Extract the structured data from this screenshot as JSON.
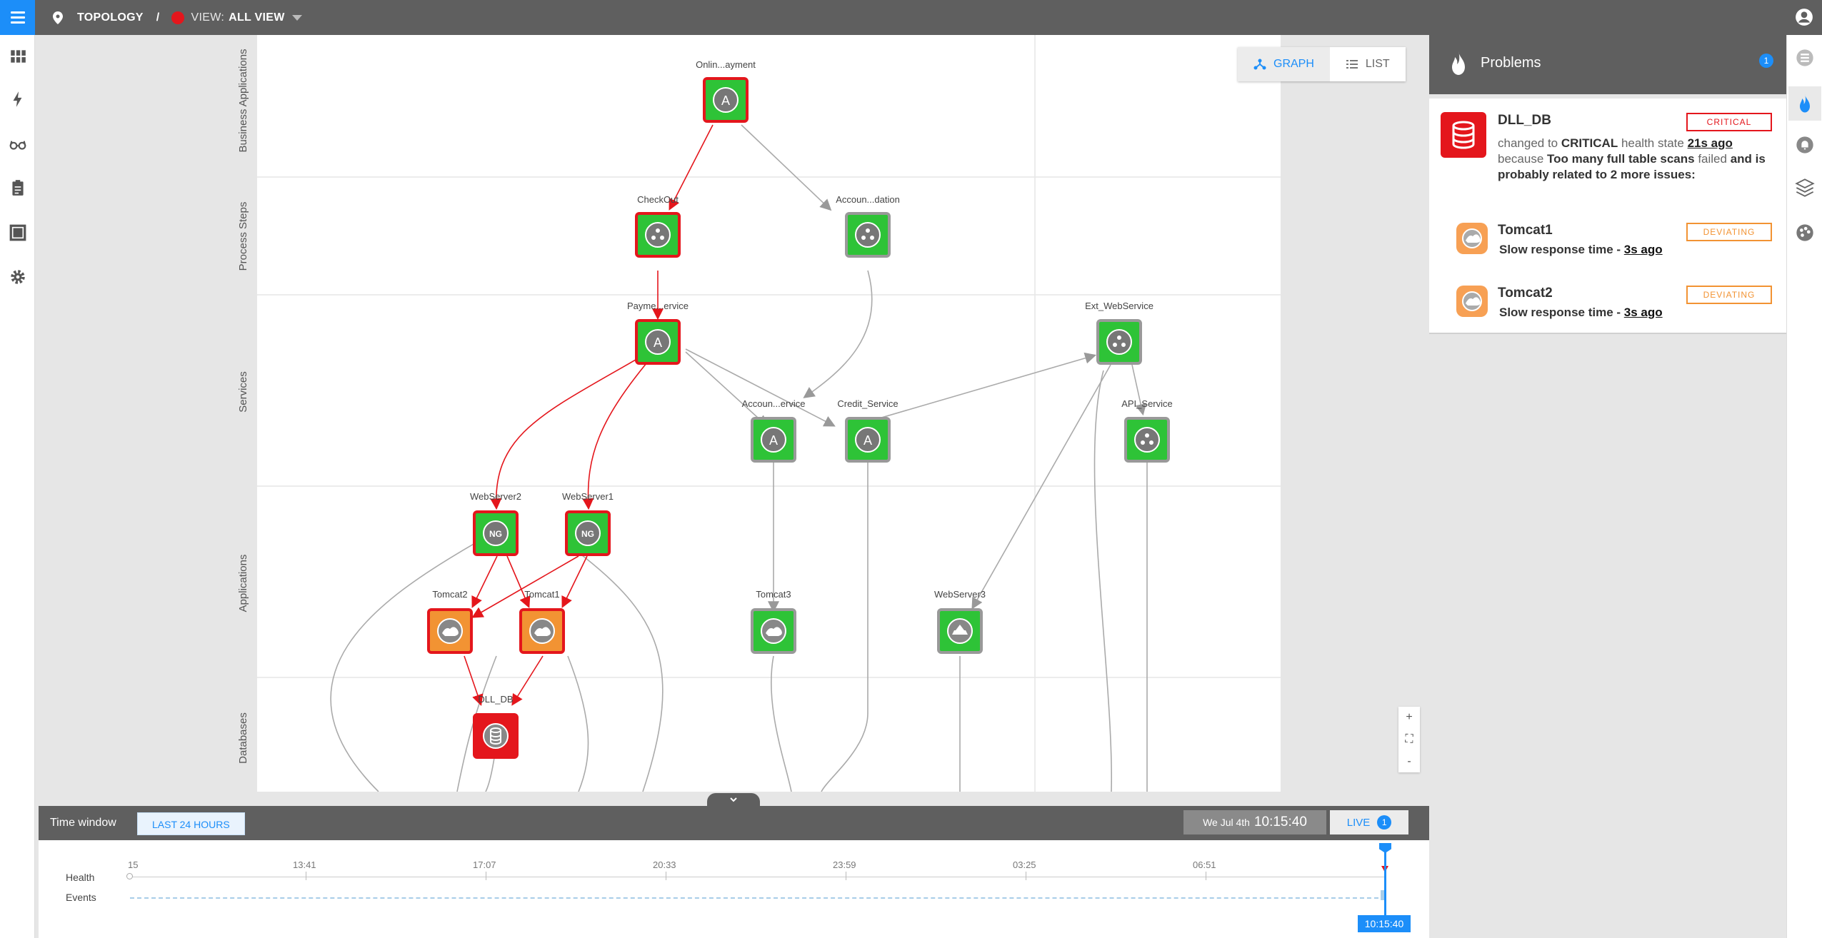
{
  "header": {
    "section": "TOPOLOGY",
    "separator": "/",
    "view_label": "VIEW:",
    "view_value": "ALL VIEW"
  },
  "left_nav": [
    "dashboard-icon",
    "lightning-icon",
    "glasses-icon",
    "clipboard-icon",
    "square-icon",
    "gear-icon"
  ],
  "right_nav": [
    "list-icon",
    "flame-icon",
    "bell-icon",
    "layers-icon",
    "palette-icon"
  ],
  "lanes": [
    "Business Applications",
    "Process Steps",
    "Services",
    "Applications",
    "Databases"
  ],
  "view_toggle": {
    "graph": "GRAPH",
    "list": "LIST"
  },
  "zoom": {
    "in": "+",
    "fit": "⛶",
    "out": "-"
  },
  "nodes": {
    "online_payment": "Onlin...ayment",
    "checkout": "CheckOut",
    "account_validation": "Accoun...dation",
    "payment_service": "Payme...ervice",
    "ext_webservice": "Ext_WebService",
    "account_service": "Accoun...ervice",
    "credit_service": "Credit_Service",
    "api_service": "API_Service",
    "webserver2": "WebServer2",
    "webserver1": "WebServer1",
    "tomcat2": "Tomcat2",
    "tomcat1": "Tomcat1",
    "tomcat3": "Tomcat3",
    "webserver3": "WebServer3",
    "dll_db": "DLL_DB"
  },
  "node_glyphs": {
    "app": "A",
    "ng": "NG"
  },
  "colors": {
    "critical": "#e4161c",
    "deviating": "#f29333",
    "healthy": "#2ec337",
    "accent": "#1c8ef9"
  },
  "time_window": {
    "label": "Time window",
    "range": "LAST 24 HOURS",
    "date": "We Jul 4th",
    "time": "10:15:40",
    "live": "LIVE",
    "live_count": "1"
  },
  "timeline": {
    "rows": [
      "Health",
      "Events"
    ],
    "ticks": [
      "15",
      "13:41",
      "17:07",
      "20:33",
      "23:59",
      "03:25",
      "06:51"
    ],
    "cursor_time": "10:15:40"
  },
  "problems": {
    "title": "Problems",
    "count": "1",
    "main": {
      "name": "DLL_DB",
      "state": "CRITICAL",
      "d1": "changed to",
      "d2": "CRITICAL",
      "d3": "health state",
      "d4": "21s ago",
      "d5": "because",
      "d6": "Too many full table scans",
      "d7": "failed",
      "d8": "and is probably related to 2 more issues:"
    },
    "related": [
      {
        "name": "Tomcat1",
        "state": "DEVIATING",
        "desc": "Slow response time -",
        "ago": "3s ago"
      },
      {
        "name": "Tomcat2",
        "state": "DEVIATING",
        "desc": "Slow response time -",
        "ago": "3s ago"
      }
    ]
  }
}
